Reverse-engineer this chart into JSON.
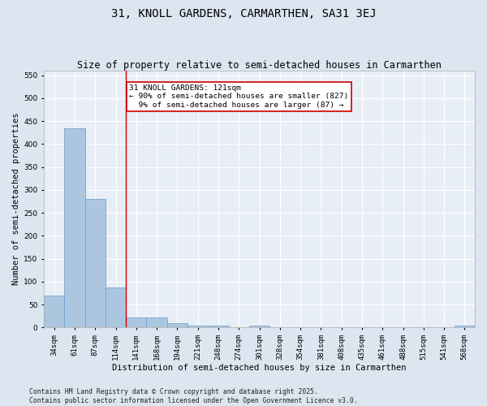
{
  "title": "31, KNOLL GARDENS, CARMARTHEN, SA31 3EJ",
  "subtitle": "Size of property relative to semi-detached houses in Carmarthen",
  "xlabel": "Distribution of semi-detached houses by size in Carmarthen",
  "ylabel": "Number of semi-detached properties",
  "categories": [
    "34sqm",
    "61sqm",
    "87sqm",
    "114sqm",
    "141sqm",
    "168sqm",
    "194sqm",
    "221sqm",
    "248sqm",
    "274sqm",
    "301sqm",
    "328sqm",
    "354sqm",
    "381sqm",
    "408sqm",
    "435sqm",
    "461sqm",
    "488sqm",
    "515sqm",
    "541sqm",
    "568sqm"
  ],
  "values": [
    70,
    435,
    280,
    88,
    22,
    22,
    10,
    5,
    5,
    0,
    5,
    0,
    0,
    0,
    0,
    0,
    0,
    0,
    0,
    0,
    5
  ],
  "bar_color": "#adc6e0",
  "bar_edgecolor": "#6699cc",
  "vline_x": 3.5,
  "vline_color": "#cc0000",
  "annotation_text": "31 KNOLL GARDENS: 121sqm\n← 90% of semi-detached houses are smaller (827)\n  9% of semi-detached houses are larger (87) →",
  "annotation_box_facecolor": "#ffffff",
  "annotation_box_edgecolor": "#cc0000",
  "ylim": [
    0,
    560
  ],
  "yticks": [
    0,
    50,
    100,
    150,
    200,
    250,
    300,
    350,
    400,
    450,
    500,
    550
  ],
  "footer": "Contains HM Land Registry data © Crown copyright and database right 2025.\nContains public sector information licensed under the Open Government Licence v3.0.",
  "bg_color": "#dce6f0",
  "plot_bg_color": "#e8eef6",
  "title_fontsize": 10,
  "subtitle_fontsize": 8.5,
  "axis_label_fontsize": 7.5,
  "tick_fontsize": 6.5,
  "annotation_fontsize": 6.8,
  "footer_fontsize": 5.8,
  "grid_color": "#ffffff"
}
